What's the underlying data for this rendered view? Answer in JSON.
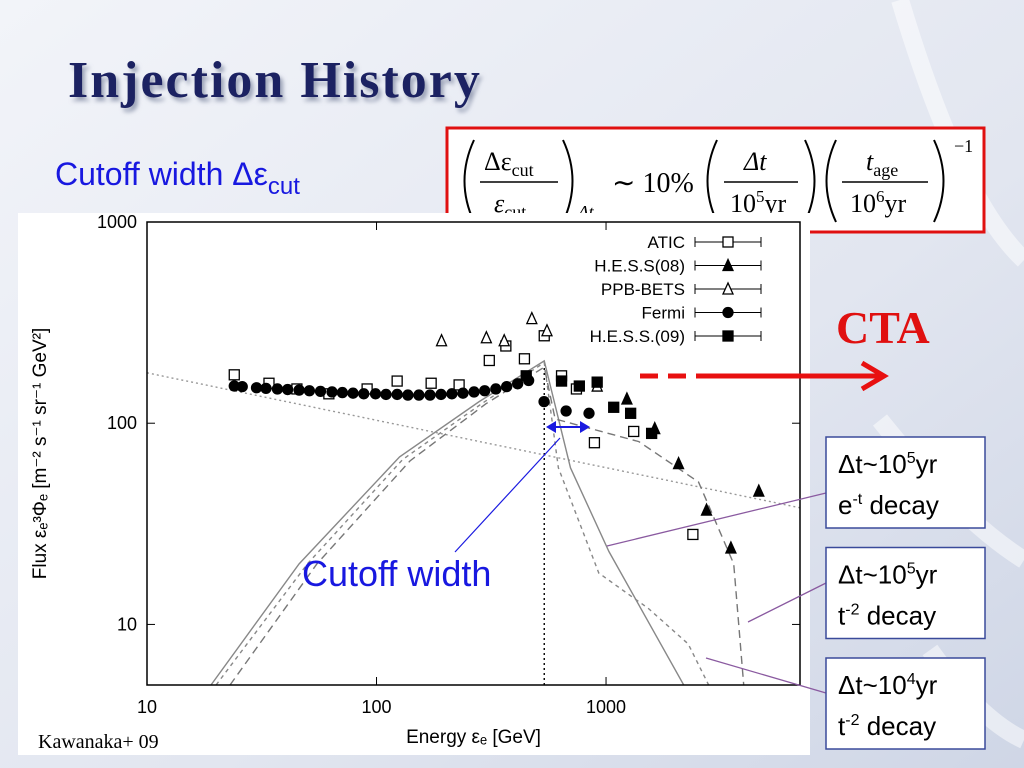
{
  "title": "Injection History",
  "subtitle": {
    "text": "Cutoff width Δε",
    "sub": "cut"
  },
  "formula": {
    "num1": "Δε",
    "num1_sub": "cut",
    "den1": "ε",
    "den1_sub": "cut",
    "outer_sub": "Δt",
    "approx": "∼ 10%",
    "num2": "Δt",
    "den2": "10",
    "den2_sup": "5",
    "den2_unit": "yr",
    "num3": "t",
    "num3_sub": "age",
    "den3": "10",
    "den3_sup": "6",
    "den3_unit": "yr",
    "power": "−1"
  },
  "cta": "CTA",
  "annotation": "Cutoff width",
  "boxes": [
    {
      "line1": "Δt~10",
      "line1_sup": "5",
      "line1_unit": "yr",
      "line2": "e",
      "line2_sup": "-t",
      "line2_end": " decay"
    },
    {
      "line1": "Δt~10",
      "line1_sup": "5",
      "line1_unit": "yr",
      "line2": "t",
      "line2_sup": "-2",
      "line2_end": " decay"
    },
    {
      "line1": "Δt~10",
      "line1_sup": "4",
      "line1_unit": "yr",
      "line2": "t",
      "line2_sup": "-2",
      "line2_end": " decay"
    }
  ],
  "credit": "Kawanaka+ 09",
  "chart_data": {
    "type": "scatter",
    "x_label": "Energy εₑ [GeV]",
    "y_label": "Flux εₑ³Φₑ [m⁻² s⁻¹ sr⁻¹ GeV²]",
    "x_log": true,
    "y_log": true,
    "xlim": [
      10,
      7000
    ],
    "ylim": [
      5,
      1000
    ],
    "xticks": [
      10,
      100,
      1000
    ],
    "yticks": [
      10,
      100,
      1000
    ],
    "legend": "upper right",
    "series": [
      {
        "name": "ATIC",
        "color": "#000000",
        "marker": "square-open",
        "x": [
          24,
          34,
          45,
          62,
          91,
          123,
          173,
          229,
          310,
          366,
          441,
          538,
          640,
          743,
          890,
          1320,
          2390
        ],
        "values": [
          174,
          158,
          148,
          140,
          148,
          162,
          158,
          155,
          205,
          242,
          209,
          272,
          172,
          148,
          80,
          91,
          28
        ]
      },
      {
        "name": "H.E.S.S(08)",
        "color": "#000000",
        "marker": "triangle-filled",
        "x": [
          1233,
          1630,
          2070,
          2740,
          3500,
          4630
        ],
        "values": [
          132,
          94,
          63,
          37,
          24,
          46
        ]
      },
      {
        "name": "PPB-BETS",
        "color": "#000000",
        "marker": "triangle-open",
        "x": [
          192,
          301,
          360,
          475,
          553,
          915
        ],
        "values": [
          257,
          266,
          257,
          331,
          288,
          153
        ]
      },
      {
        "name": "Fermi",
        "color": "#000000",
        "marker": "circle-filled",
        "x": [
          24,
          26,
          30,
          33,
          37,
          41,
          46,
          51,
          57,
          64,
          71,
          79,
          88,
          99,
          110,
          123,
          137,
          153,
          171,
          191,
          213,
          238,
          266,
          296,
          331,
          369,
          412,
          460,
          537,
          670,
          843
        ],
        "values": [
          153,
          152,
          150,
          149,
          148,
          147,
          146,
          145,
          144,
          143,
          142,
          141,
          140,
          140,
          139,
          139,
          138,
          138,
          138,
          139,
          140,
          141,
          143,
          145,
          148,
          152,
          157,
          163,
          128,
          115,
          112
        ]
      },
      {
        "name": "H.E.S.S.(09)",
        "color": "#000000",
        "marker": "square-filled",
        "x": [
          449,
          640,
          765,
          915,
          1080,
          1280,
          1580
        ],
        "values": [
          172,
          162,
          153,
          160,
          120,
          112,
          89
        ]
      }
    ],
    "curves": [
      {
        "color": "#999999",
        "style": "dotted",
        "x": [
          10,
          7000
        ],
        "values": [
          178,
          38
        ]
      },
      {
        "color": "#888888",
        "style": "solid",
        "x": [
          19,
          46,
          126,
          280,
          538,
          700,
          1030,
          2180
        ],
        "values": [
          5,
          20,
          68,
          128,
          204,
          60,
          23,
          5
        ]
      },
      {
        "color": "#777777",
        "style": "dashed",
        "x": [
          23,
          55,
          140,
          300,
          538,
          600,
          1390,
          2530,
          3600,
          3980
        ],
        "values": [
          5,
          20,
          65,
          125,
          190,
          105,
          81,
          51,
          20,
          5
        ]
      },
      {
        "color": "#888888",
        "style": "dashdot",
        "x": [
          20,
          50,
          130,
          290,
          538,
          620,
          930,
          1530,
          2280,
          2800
        ],
        "values": [
          5,
          20,
          66,
          126,
          200,
          60,
          18,
          12,
          8,
          5
        ]
      },
      {
        "color": "#000000",
        "style": "dotted",
        "x": [
          538,
          538
        ],
        "values": [
          5,
          190
        ]
      }
    ]
  }
}
